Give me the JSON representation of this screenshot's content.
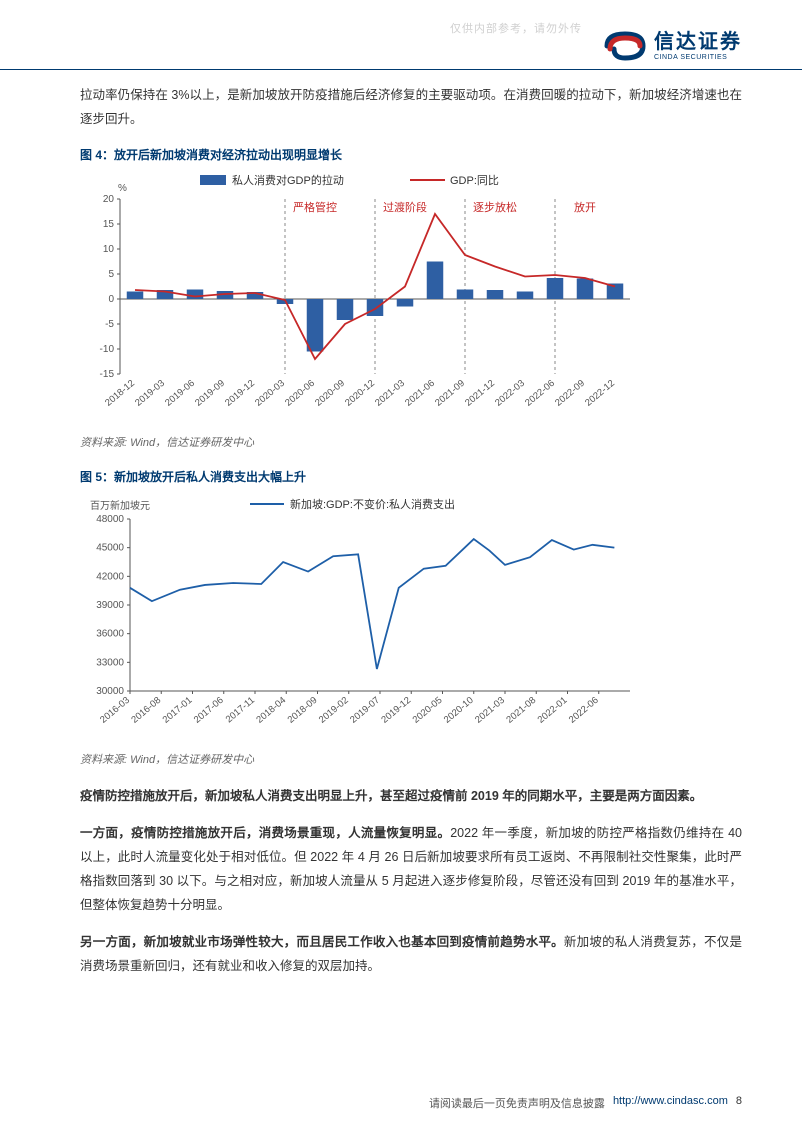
{
  "watermark": "仅供内部参考，请勿外传",
  "header": {
    "logo_cn": "信达证券",
    "logo_en": "CINDA SECURITIES"
  },
  "intro_para": "拉动率仍保持在 3%以上，是新加坡放开防疫措施后经济修复的主要驱动项。在消费回暖的拉动下，新加坡经济增速也在逐步回升。",
  "fig4": {
    "title": "图 4：放开后新加坡消费对经济拉动出现明显增长",
    "type": "bar+line",
    "y_unit": "%",
    "legend_bar": "私人消费对GDP的拉动",
    "legend_line": "GDP:同比",
    "categories": [
      "2018-12",
      "2019-03",
      "2019-06",
      "2019-09",
      "2019-12",
      "2020-03",
      "2020-06",
      "2020-09",
      "2020-12",
      "2021-03",
      "2021-06",
      "2021-09",
      "2021-12",
      "2022-03",
      "2022-06",
      "2022-09",
      "2022-12"
    ],
    "bar_values": [
      1.5,
      1.8,
      1.9,
      1.6,
      1.4,
      -1.0,
      -10.5,
      -4.2,
      -3.4,
      -1.5,
      7.5,
      1.9,
      1.8,
      1.5,
      4.2,
      4.1,
      3.1
    ],
    "line_values": [
      1.8,
      1.5,
      0.5,
      1.0,
      1.2,
      -0.2,
      -12.0,
      -5.0,
      -2.0,
      2.5,
      17.0,
      8.8,
      6.5,
      4.5,
      4.8,
      4.2,
      2.5
    ],
    "ylim": [
      -15,
      20
    ],
    "ytick_step": 5,
    "phase_labels": [
      "严格管控",
      "过渡阶段",
      "逐步放松",
      "放开"
    ],
    "phase_x": [
      6,
      9,
      12,
      15
    ],
    "phase_dash_x": [
      5.5,
      8.5,
      11.5,
      14.5
    ],
    "bar_color": "#2e5fa3",
    "line_color": "#c62828",
    "label_color": "#c62828",
    "axis_color": "#555555",
    "text_color": "#333333",
    "font_size": 10
  },
  "source4": "资料来源: Wind，信达证券研发中心",
  "fig5": {
    "title": "图 5：新加坡放开后私人消费支出大幅上升",
    "type": "line",
    "y_unit": "百万新加坡元",
    "legend": "新加坡:GDP:不变价:私人消费支出",
    "categories": [
      "2016-03",
      "2016-08",
      "2017-01",
      "2017-06",
      "2017-11",
      "2018-04",
      "2018-09",
      "2019-02",
      "2019-07",
      "2019-12",
      "2020-05",
      "2020-10",
      "2021-03",
      "2021-08",
      "2022-01",
      "2022-06"
    ],
    "values": [
      40800,
      39400,
      40600,
      41100,
      41300,
      41200,
      43500,
      42500,
      44100,
      44300,
      32300,
      40800,
      42800,
      43100,
      45900,
      44700,
      43200,
      44000,
      45800,
      44800,
      45300,
      45000
    ],
    "x_plot": [
      0,
      0.7,
      1.6,
      2.4,
      3.3,
      4.2,
      4.9,
      5.7,
      6.5,
      7.3,
      7.9,
      8.6,
      9.4,
      10.1,
      11.0,
      11.5,
      12.0,
      12.8,
      13.5,
      14.2,
      14.8,
      15.5
    ],
    "ylim": [
      30000,
      48000
    ],
    "ytick_step": 3000,
    "line_color": "#1e5fa8",
    "axis_color": "#555555",
    "font_size": 10
  },
  "source5": "资料来源: Wind，信达证券研发中心",
  "para1_bold": "疫情防控措施放开后，新加坡私人消费支出明显上升，甚至超过疫情前 2019 年的同期水平，主要是两方面因素。",
  "para2_bold": "一方面，疫情防控措施放开后，消费场景重现，人流量恢复明显。",
  "para2_rest": "2022 年一季度，新加坡的防控严格指数仍维持在 40 以上，此时人流量变化处于相对低位。但 2022 年 4 月 26 日后新加坡要求所有员工返岗、不再限制社交性聚集，此时严格指数回落到 30 以下。与之相对应，新加坡人流量从 5 月起进入逐步修复阶段，尽管还没有回到 2019 年的基准水平，但整体恢复趋势十分明显。",
  "para3_bold": "另一方面，新加坡就业市场弹性较大，而且居民工作收入也基本回到疫情前趋势水平。",
  "para3_rest": "新加坡的私人消费复苏，不仅是消费场景重新回归，还有就业和收入修复的双层加持。",
  "footer": {
    "text": "请阅读最后一页免责声明及信息披露",
    "url": "http://www.cindasc.com",
    "page": "8"
  }
}
